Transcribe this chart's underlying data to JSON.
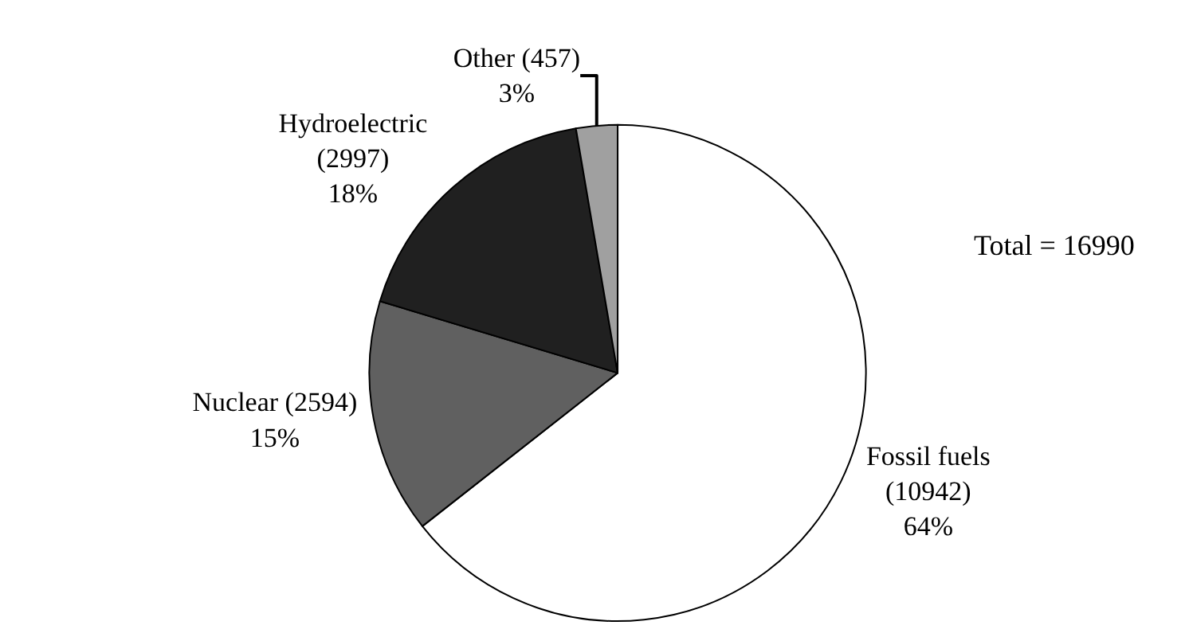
{
  "chart_data": {
    "type": "pie",
    "categories": [
      "Fossil fuels",
      "Nuclear",
      "Hydroelectric",
      "Other"
    ],
    "values": [
      10942,
      2594,
      2997,
      457
    ],
    "value_labels": [
      "(10942) 64%",
      "(2594) 15%",
      "(2997) 18%",
      "(457) 3%"
    ],
    "colors": [
      "#ffffff",
      "#606060",
      "#202020",
      "#a0a0a0"
    ],
    "annotations": [
      "Total = 16990"
    ],
    "legend": false
  }
}
